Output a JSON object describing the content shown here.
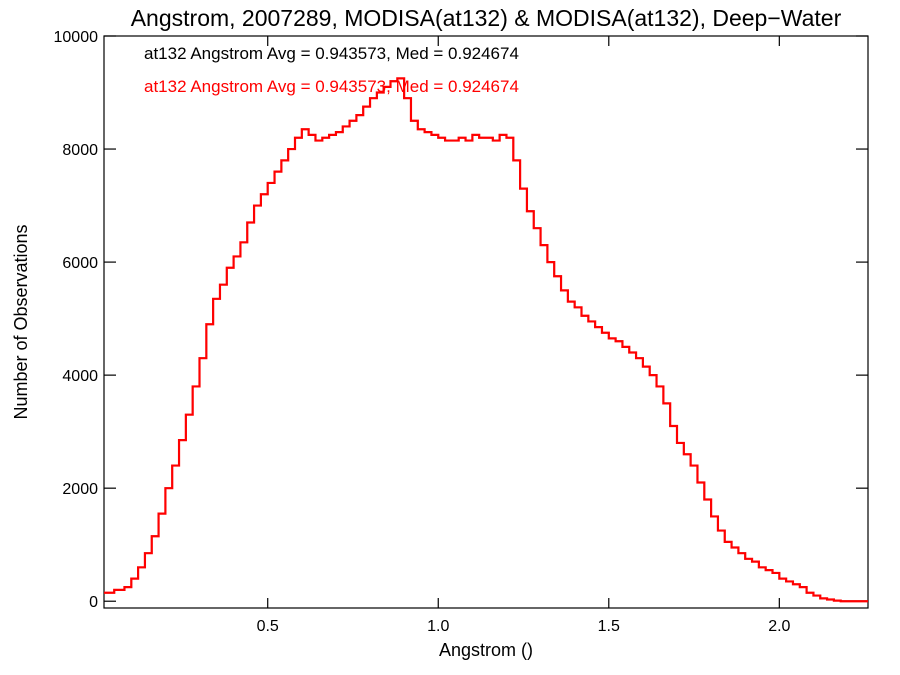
{
  "chart_data": {
    "type": "line",
    "title": "Angstrom, 2007289, MODISA(at132) & MODISA(at132), Deep−Water",
    "xlabel": "Angstrom ()",
    "ylabel": "Number of Observations",
    "xlim": [
      0.02,
      2.26
    ],
    "ylim": [
      -120,
      10000
    ],
    "xticks": [
      0.5,
      1.0,
      1.5,
      2.0
    ],
    "xtick_labels": [
      "0.5",
      "1.0",
      "1.5",
      "2.0"
    ],
    "yticks": [
      0,
      2000,
      4000,
      6000,
      8000,
      10000
    ],
    "ytick_labels": [
      "0",
      "2000",
      "4000",
      "6000",
      "8000",
      "10000"
    ],
    "grid": false,
    "line_style": "step",
    "annotations": [
      {
        "text": "at132 Angstrom Avg = 0.943573, Med = 0.924674",
        "color": "#000000"
      },
      {
        "text": "at132 Angstrom Avg = 0.943573, Med = 0.924674",
        "color": "#ff0000"
      }
    ],
    "series": [
      {
        "color": "#000000",
        "x": [
          0.02,
          0.05,
          0.08,
          0.1,
          0.12,
          0.14,
          0.16,
          0.18,
          0.2,
          0.22,
          0.24,
          0.26,
          0.28,
          0.3,
          0.32,
          0.34,
          0.36,
          0.38,
          0.4,
          0.42,
          0.44,
          0.46,
          0.48,
          0.5,
          0.52,
          0.54,
          0.56,
          0.58,
          0.6,
          0.62,
          0.64,
          0.66,
          0.68,
          0.7,
          0.72,
          0.74,
          0.76,
          0.78,
          0.8,
          0.82,
          0.84,
          0.86,
          0.88,
          0.9,
          0.92,
          0.94,
          0.96,
          0.98,
          1.0,
          1.02,
          1.04,
          1.06,
          1.08,
          1.1,
          1.12,
          1.14,
          1.16,
          1.18,
          1.2,
          1.22,
          1.24,
          1.26,
          1.28,
          1.3,
          1.32,
          1.34,
          1.36,
          1.38,
          1.4,
          1.42,
          1.44,
          1.46,
          1.48,
          1.5,
          1.52,
          1.54,
          1.56,
          1.58,
          1.6,
          1.62,
          1.64,
          1.66,
          1.68,
          1.7,
          1.72,
          1.74,
          1.76,
          1.78,
          1.8,
          1.82,
          1.84,
          1.86,
          1.88,
          1.9,
          1.92,
          1.94,
          1.96,
          1.98,
          2.0,
          2.02,
          2.04,
          2.06,
          2.08,
          2.1,
          2.12,
          2.14,
          2.16,
          2.18,
          2.2,
          2.22,
          2.24,
          2.26
        ],
        "y": [
          150,
          200,
          250,
          400,
          600,
          850,
          1150,
          1550,
          2000,
          2400,
          2850,
          3300,
          3800,
          4300,
          4900,
          5350,
          5600,
          5900,
          6100,
          6350,
          6700,
          7000,
          7200,
          7400,
          7600,
          7800,
          8000,
          8200,
          8350,
          8250,
          8150,
          8200,
          8250,
          8300,
          8400,
          8500,
          8600,
          8750,
          8900,
          9000,
          9100,
          9200,
          9250,
          8900,
          8500,
          8350,
          8300,
          8250,
          8200,
          8150,
          8150,
          8200,
          8150,
          8250,
          8200,
          8200,
          8150,
          8250,
          8200,
          7800,
          7300,
          6900,
          6600,
          6300,
          6000,
          5750,
          5500,
          5300,
          5200,
          5050,
          4950,
          4850,
          4750,
          4650,
          4600,
          4500,
          4400,
          4300,
          4150,
          4000,
          3800,
          3500,
          3100,
          2800,
          2600,
          2400,
          2100,
          1800,
          1500,
          1250,
          1050,
          950,
          850,
          750,
          700,
          600,
          550,
          500,
          400,
          350,
          300,
          250,
          150,
          100,
          50,
          30,
          10,
          0,
          0,
          0,
          0,
          0
        ]
      },
      {
        "color": "#ff0000",
        "x": [
          0.02,
          0.05,
          0.08,
          0.1,
          0.12,
          0.14,
          0.16,
          0.18,
          0.2,
          0.22,
          0.24,
          0.26,
          0.28,
          0.3,
          0.32,
          0.34,
          0.36,
          0.38,
          0.4,
          0.42,
          0.44,
          0.46,
          0.48,
          0.5,
          0.52,
          0.54,
          0.56,
          0.58,
          0.6,
          0.62,
          0.64,
          0.66,
          0.68,
          0.7,
          0.72,
          0.74,
          0.76,
          0.78,
          0.8,
          0.82,
          0.84,
          0.86,
          0.88,
          0.9,
          0.92,
          0.94,
          0.96,
          0.98,
          1.0,
          1.02,
          1.04,
          1.06,
          1.08,
          1.1,
          1.12,
          1.14,
          1.16,
          1.18,
          1.2,
          1.22,
          1.24,
          1.26,
          1.28,
          1.3,
          1.32,
          1.34,
          1.36,
          1.38,
          1.4,
          1.42,
          1.44,
          1.46,
          1.48,
          1.5,
          1.52,
          1.54,
          1.56,
          1.58,
          1.6,
          1.62,
          1.64,
          1.66,
          1.68,
          1.7,
          1.72,
          1.74,
          1.76,
          1.78,
          1.8,
          1.82,
          1.84,
          1.86,
          1.88,
          1.9,
          1.92,
          1.94,
          1.96,
          1.98,
          2.0,
          2.02,
          2.04,
          2.06,
          2.08,
          2.1,
          2.12,
          2.14,
          2.16,
          2.18,
          2.2,
          2.22,
          2.24,
          2.26
        ],
        "y": [
          150,
          200,
          250,
          400,
          600,
          850,
          1150,
          1550,
          2000,
          2400,
          2850,
          3300,
          3800,
          4300,
          4900,
          5350,
          5600,
          5900,
          6100,
          6350,
          6700,
          7000,
          7200,
          7400,
          7600,
          7800,
          8000,
          8200,
          8350,
          8250,
          8150,
          8200,
          8250,
          8300,
          8400,
          8500,
          8600,
          8750,
          8900,
          9000,
          9100,
          9200,
          9250,
          8900,
          8500,
          8350,
          8300,
          8250,
          8200,
          8150,
          8150,
          8200,
          8150,
          8250,
          8200,
          8200,
          8150,
          8250,
          8200,
          7800,
          7300,
          6900,
          6600,
          6300,
          6000,
          5750,
          5500,
          5300,
          5200,
          5050,
          4950,
          4850,
          4750,
          4650,
          4600,
          4500,
          4400,
          4300,
          4150,
          4000,
          3800,
          3500,
          3100,
          2800,
          2600,
          2400,
          2100,
          1800,
          1500,
          1250,
          1050,
          950,
          850,
          750,
          700,
          600,
          550,
          500,
          400,
          350,
          300,
          250,
          150,
          100,
          50,
          30,
          10,
          0,
          0,
          0,
          0,
          0
        ]
      }
    ]
  }
}
